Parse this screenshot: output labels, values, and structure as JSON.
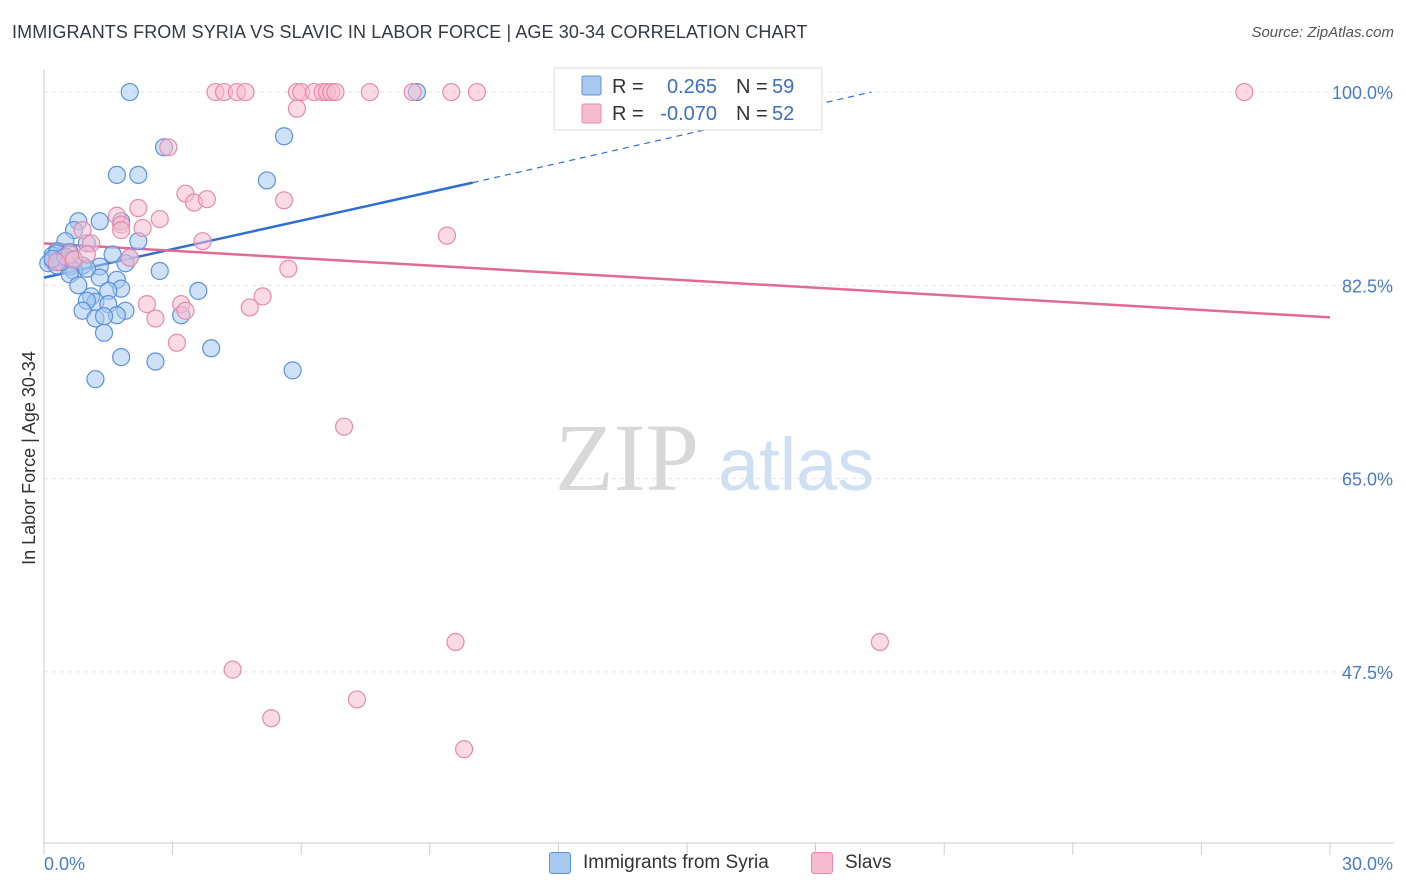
{
  "title": "IMMIGRANTS FROM SYRIA VS SLAVIC IN LABOR FORCE | AGE 30-34 CORRELATION CHART",
  "source": "Source: ZipAtlas.com",
  "watermark": {
    "zip": "ZIP",
    "atlas": "atlas"
  },
  "legend_top": {
    "r_label": "R =",
    "n_label": "N =",
    "rows": [
      {
        "r": "0.265",
        "n": "59"
      },
      {
        "r": "-0.070",
        "n": "52"
      }
    ]
  },
  "colors": {
    "blue_fill": "#a8c8f0",
    "blue_stroke": "#5b93d9",
    "blue_line": "#2f6fce",
    "pink_fill": "#f5bcd0",
    "pink_stroke": "#e88aac",
    "pink_line": "#e06a98",
    "grid": "#e3e3e3",
    "axis": "#cccccc"
  },
  "chart_data": {
    "type": "scatter",
    "title": "IMMIGRANTS FROM SYRIA VS SLAVIC IN LABOR FORCE | AGE 30-34 CORRELATION CHART",
    "xlabel": "",
    "ylabel": "In Labor Force | Age 30-34",
    "xlim": [
      0,
      30
    ],
    "ylim": [
      32,
      102
    ],
    "x_tick_labels": [
      "0.0%",
      "30.0%"
    ],
    "y_ticks": [
      {
        "value": 100,
        "label": "100.0%"
      },
      {
        "value": 82.5,
        "label": "82.5%"
      },
      {
        "value": 65,
        "label": "65.0%"
      },
      {
        "value": 47.5,
        "label": "47.5%"
      }
    ],
    "series": [
      {
        "name": "Immigrants from Syria",
        "color": "blue",
        "R": 0.265,
        "N": 59,
        "trend": {
          "x0": 0,
          "y0": 83.2,
          "x1": 10,
          "y1": 91.8,
          "dash_to_x": 19.3,
          "dash_to_y": 100
        },
        "points": [
          [
            2.0,
            100
          ],
          [
            8.7,
            100
          ],
          [
            5.6,
            96
          ],
          [
            2.8,
            95
          ],
          [
            1.7,
            92.5
          ],
          [
            2.2,
            92.5
          ],
          [
            5.2,
            92
          ],
          [
            0.8,
            88.3
          ],
          [
            1.3,
            88.3
          ],
          [
            1.8,
            88.3
          ],
          [
            0.7,
            87.5
          ],
          [
            0.5,
            86.5
          ],
          [
            1.0,
            86.3
          ],
          [
            2.2,
            86.5
          ],
          [
            0.3,
            85.6
          ],
          [
            0.6,
            85.5
          ],
          [
            1.6,
            85.3
          ],
          [
            2.0,
            85.0
          ],
          [
            0.2,
            85.2
          ],
          [
            0.4,
            85.0
          ],
          [
            0.5,
            84.8
          ],
          [
            0.2,
            84.7
          ],
          [
            0.1,
            84.5
          ],
          [
            0.3,
            84.3
          ],
          [
            0.9,
            84.3
          ],
          [
            1.3,
            84.2
          ],
          [
            0.6,
            84.2
          ],
          [
            0.7,
            83.8
          ],
          [
            2.7,
            83.8
          ],
          [
            0.6,
            83.5
          ],
          [
            1.9,
            84.5
          ],
          [
            1.3,
            83.2
          ],
          [
            1.7,
            83.0
          ],
          [
            0.8,
            82.5
          ],
          [
            1.8,
            82.2
          ],
          [
            3.6,
            82.0
          ],
          [
            1.5,
            82.0
          ],
          [
            1.1,
            81.5
          ],
          [
            1.2,
            81.0
          ],
          [
            1.0,
            81.1
          ],
          [
            1.5,
            80.8
          ],
          [
            0.9,
            80.2
          ],
          [
            1.9,
            80.2
          ],
          [
            1.7,
            79.8
          ],
          [
            3.2,
            79.8
          ],
          [
            1.2,
            79.5
          ],
          [
            1.4,
            79.7
          ],
          [
            1.4,
            78.2
          ],
          [
            3.9,
            76.8
          ],
          [
            1.8,
            76.0
          ],
          [
            2.6,
            75.6
          ],
          [
            5.8,
            74.8
          ],
          [
            1.2,
            74.0
          ],
          [
            0.3,
            85.4
          ],
          [
            0.4,
            84.6
          ],
          [
            0.2,
            84.9
          ],
          [
            1.0,
            84.0
          ],
          [
            0.5,
            85.1
          ],
          [
            0.7,
            84.9
          ]
        ]
      },
      {
        "name": "Slavs",
        "color": "pink",
        "R": -0.07,
        "N": 52,
        "trend": {
          "x0": 0,
          "y0": 86.3,
          "x1": 30,
          "y1": 79.6
        },
        "points": [
          [
            4.0,
            100
          ],
          [
            4.2,
            100
          ],
          [
            4.5,
            100
          ],
          [
            4.7,
            100
          ],
          [
            5.9,
            100
          ],
          [
            6.0,
            100
          ],
          [
            6.3,
            100
          ],
          [
            6.5,
            100
          ],
          [
            6.6,
            100
          ],
          [
            6.7,
            100
          ],
          [
            6.8,
            100
          ],
          [
            7.6,
            100
          ],
          [
            8.6,
            100
          ],
          [
            9.5,
            100
          ],
          [
            10.1,
            100
          ],
          [
            28.0,
            100
          ],
          [
            5.9,
            98.5
          ],
          [
            2.9,
            95
          ],
          [
            3.3,
            90.8
          ],
          [
            3.5,
            90.0
          ],
          [
            3.8,
            90.3
          ],
          [
            5.6,
            90.2
          ],
          [
            2.2,
            89.5
          ],
          [
            1.7,
            88.8
          ],
          [
            2.7,
            88.5
          ],
          [
            1.8,
            88.0
          ],
          [
            2.3,
            87.7
          ],
          [
            1.8,
            87.5
          ],
          [
            0.9,
            87.5
          ],
          [
            9.4,
            87.0
          ],
          [
            3.7,
            86.5
          ],
          [
            1.1,
            86.3
          ],
          [
            0.6,
            85.3
          ],
          [
            2.0,
            85.0
          ],
          [
            0.7,
            84.8
          ],
          [
            0.3,
            84.6
          ],
          [
            5.7,
            84.0
          ],
          [
            5.1,
            81.5
          ],
          [
            3.2,
            80.8
          ],
          [
            2.4,
            80.8
          ],
          [
            4.8,
            80.5
          ],
          [
            3.3,
            80.2
          ],
          [
            2.6,
            79.5
          ],
          [
            3.1,
            77.3
          ],
          [
            7.0,
            69.7
          ],
          [
            9.6,
            50.2
          ],
          [
            19.5,
            50.2
          ],
          [
            4.4,
            47.7
          ],
          [
            7.3,
            45.0
          ],
          [
            5.3,
            43.3
          ],
          [
            9.8,
            40.5
          ],
          [
            1.0,
            85.3
          ]
        ]
      }
    ]
  },
  "bottom_legend": [
    {
      "label": "Immigrants from Syria",
      "color": "blue"
    },
    {
      "label": "Slavs",
      "color": "pink"
    }
  ]
}
